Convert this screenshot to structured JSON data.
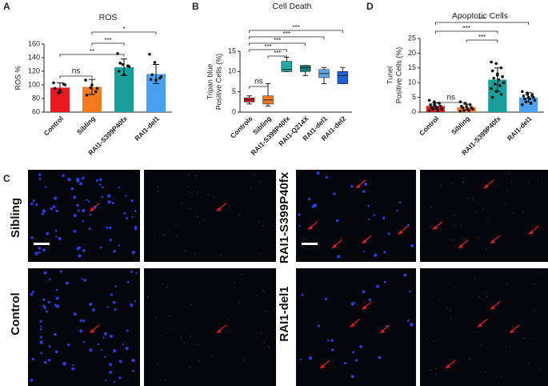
{
  "chart_data": [
    {
      "type": "bar",
      "panel": "A",
      "title": "ROS",
      "ylabel": [
        "ROS %"
      ],
      "categories": [
        "Control",
        "Sibling",
        "RAI1-S399P40fx",
        "RAI1-del1"
      ],
      "colors": [
        "#e8191f",
        "#f47a20",
        "#1a9e9c",
        "#4aa0f0"
      ],
      "values": [
        96,
        97,
        126,
        116
      ],
      "errors": [
        7,
        11,
        12,
        14
      ],
      "points": [
        [
          103,
          88,
          101,
          95,
          92,
          100
        ],
        [
          107,
          96,
          90,
          85,
          100,
          95
        ],
        [
          146,
          130,
          128,
          120,
          115,
          127,
          132
        ],
        [
          145,
          133,
          110,
          108,
          107,
          112,
          115
        ]
      ],
      "ylim": [
        60,
        160
      ],
      "yticks": [
        60,
        80,
        100,
        120,
        140,
        160
      ],
      "brackets": [
        {
          "pair": [
            0,
            1
          ],
          "label": "ns"
        },
        {
          "pair": [
            0,
            2
          ],
          "label": "**"
        },
        {
          "pair": [
            1,
            2
          ],
          "label": "***"
        },
        {
          "pair": [
            1,
            3
          ],
          "label": "*"
        }
      ]
    },
    {
      "type": "box",
      "panel": "B",
      "title": "Cell Death",
      "ylabel": [
        "Tripan blue",
        "Positive Cells (%)"
      ],
      "categories": [
        "Controls",
        "Sibling",
        "RAI1-S399P40fx",
        "RAI1-Q214X",
        "RAI1-del1",
        "RAI1-del2"
      ],
      "colors": [
        "#e8191f",
        "#f47a20",
        "#26a9a0",
        "#137a7f",
        "#60a8e8",
        "#1c5fd8"
      ],
      "boxes": [
        {
          "min": 2,
          "q1": 2.5,
          "median": 3,
          "q3": 3.5,
          "max": 4
        },
        {
          "min": 1.5,
          "q1": 2,
          "median": 3,
          "q3": 4,
          "max": 7
        },
        {
          "min": 10,
          "q1": 10,
          "median": 10.5,
          "q3": 12.5,
          "max": 13.5
        },
        {
          "min": 9,
          "q1": 10,
          "median": 11,
          "q3": 11.5,
          "max": 11.5
        },
        {
          "min": 7,
          "q1": 8.5,
          "median": 9.5,
          "q3": 10.5,
          "max": 11
        },
        {
          "min": 7,
          "q1": 7,
          "median": 9,
          "q3": 10,
          "max": 11
        }
      ],
      "ylim": [
        0,
        15
      ],
      "yticks": [
        0,
        5,
        10,
        15
      ],
      "brackets": [
        {
          "pair": [
            0,
            1
          ],
          "label": "ns"
        },
        {
          "pair": [
            1,
            2
          ],
          "label": "***"
        },
        {
          "pair": [
            0,
            2
          ],
          "label": "***"
        },
        {
          "pair": [
            0,
            3
          ],
          "label": "***"
        },
        {
          "pair": [
            0,
            4
          ],
          "label": "***"
        },
        {
          "pair": [
            0,
            5
          ],
          "label": "***"
        }
      ]
    },
    {
      "type": "bar",
      "panel": "D",
      "title": "Apoptotic Cells",
      "ylabel": [
        "Tunel",
        "Positive Cells (%)"
      ],
      "categories": [
        "Control",
        "Sibling",
        "RAI1-S399P40fx",
        "RAI1-del1"
      ],
      "colors": [
        "#e8191f",
        "#f47a20",
        "#1a9e9c",
        "#4aa0f0"
      ],
      "values": [
        2.1,
        1.7,
        11,
        5
      ],
      "errors": [
        1,
        1,
        4,
        1.6
      ],
      "points": [
        [
          4,
          3.5,
          3,
          2.5,
          2,
          2,
          1.5,
          1.5,
          1,
          1,
          0.5,
          0.5,
          2.5,
          3
        ],
        [
          3.5,
          3,
          2.5,
          2,
          2,
          1.5,
          1.5,
          1,
          1,
          0.5,
          0.5,
          0.3
        ],
        [
          17,
          16.5,
          15,
          14,
          13,
          12,
          11.5,
          11,
          10,
          9.5,
          9,
          8,
          7,
          6,
          5,
          12.5
        ],
        [
          7,
          6.5,
          6,
          5.5,
          5,
          5,
          4.5,
          4.5,
          4,
          3.5,
          3,
          2.5,
          6,
          5.5
        ]
      ],
      "ylim": [
        0,
        25
      ],
      "yticks": [
        0,
        5,
        10,
        15,
        20,
        25
      ],
      "brackets": [
        {
          "pair": [
            0,
            1
          ],
          "label": "ns"
        },
        {
          "pair": [
            1,
            2
          ],
          "label": "***"
        },
        {
          "pair": [
            0,
            2
          ],
          "label": "***"
        },
        {
          "pair": [
            0,
            3
          ],
          "label": "***"
        }
      ]
    }
  ],
  "micrographs": {
    "panel": "C",
    "row_labels": [
      "Sibling",
      "Control",
      "RAI1-S399P40fx",
      "RAI1-del1"
    ]
  }
}
